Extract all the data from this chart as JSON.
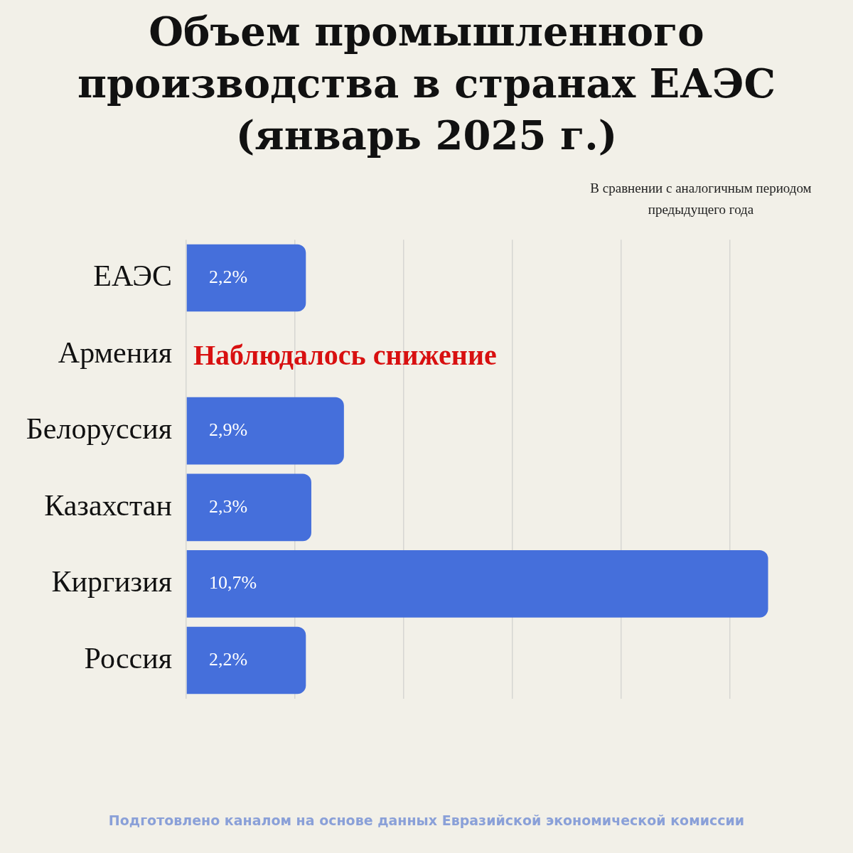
{
  "chart_data": {
    "type": "bar",
    "orientation": "horizontal",
    "title": "Объем промышленного производства в странах ЕАЭС (январь 2025 г.)",
    "subtitle": "В сравнении с аналогичным периодом предыдущего года",
    "categories": [
      "ЕАЭС",
      "Армения",
      "Белоруссия",
      "Казахстан",
      "Киргизия",
      "Россия"
    ],
    "values": [
      2.2,
      null,
      2.9,
      2.3,
      10.7,
      2.2
    ],
    "value_labels": [
      "2,2%",
      null,
      "2,9%",
      "2,3%",
      "10,7%",
      "2,2%"
    ],
    "color": "#456fdb",
    "xticks": [
      {
        "value": 0,
        "label": null
      },
      {
        "value": 2,
        "label": null
      },
      {
        "value": 4,
        "label": null
      },
      {
        "value": 6,
        "label": null
      },
      {
        "value": 8,
        "label": null
      },
      {
        "value": 10,
        "label": null
      }
    ],
    "grid": "x",
    "tick_labels": "y",
    "legend": false,
    "annotations": [
      "Наблюдалось снижение",
      "Подготовлено каналом на основе данных Евразийской экономической комиссии"
    ]
  }
}
